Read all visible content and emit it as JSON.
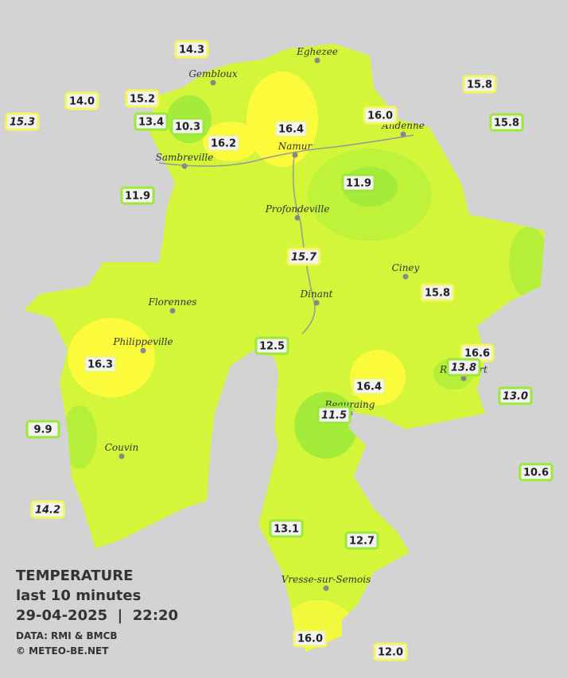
{
  "title": "TEMPERATURE",
  "subtitle": "last 10 minutes",
  "timestamp": "29-04-2025  |  22:20",
  "source": "DATA: RMI & BMCB",
  "credit": "© METEO-BE.NET",
  "towns": [
    "Eghezee",
    "Gembloux",
    "Andenne",
    "Namur",
    "Sambreville",
    "Profondeville",
    "Ciney",
    "Dinant",
    "Florennes",
    "Philippeville",
    "Rochefort",
    "Beauraing",
    "Couvin",
    "Vresse-sur-Semois"
  ],
  "stations": [
    "14.3",
    "14.0",
    "15.2",
    "15.3",
    "13.4",
    "10.3",
    "16.2",
    "16.4",
    "16.0",
    "15.8",
    "15.8",
    "11.9",
    "11.9",
    "15.7",
    "15.8",
    "12.5",
    "16.3",
    "16.6",
    "13.8",
    "13.0",
    "16.4",
    "11.5",
    "9.9",
    "10.6",
    "14.2",
    "13.1",
    "12.7",
    "16.0",
    "12.0"
  ]
}
